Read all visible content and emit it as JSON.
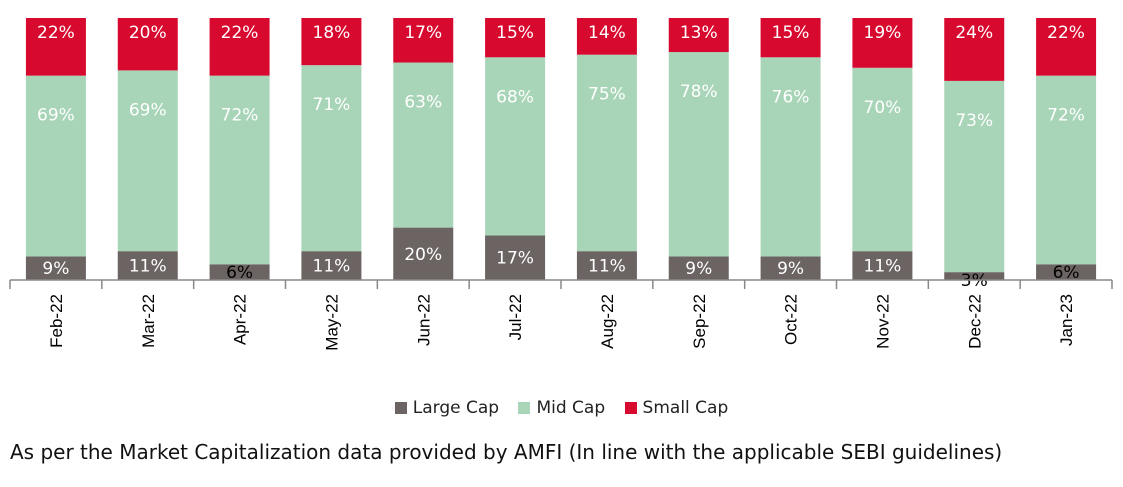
{
  "chart_data": {
    "type": "bar",
    "stacked": true,
    "categories": [
      "Feb-22",
      "Mar-22",
      "Apr-22",
      "May-22",
      "Jun-22",
      "Jul-22",
      "Aug-22",
      "Sep-22",
      "Oct-22",
      "Nov-22",
      "Dec-22",
      "Jan-23"
    ],
    "series": [
      {
        "name": "Large Cap",
        "color": "#6b6462",
        "values": [
          9,
          11,
          6,
          11,
          20,
          17,
          11,
          9,
          9,
          11,
          3,
          6
        ]
      },
      {
        "name": "Mid Cap",
        "color": "#a8d5b7",
        "values": [
          69,
          69,
          72,
          71,
          63,
          68,
          75,
          78,
          76,
          70,
          73,
          72
        ]
      },
      {
        "name": "Small Cap",
        "color": "#d8092f",
        "values": [
          22,
          20,
          22,
          18,
          17,
          15,
          14,
          13,
          15,
          19,
          24,
          22
        ]
      }
    ],
    "data_labels": [
      [
        "9%",
        "11%",
        "6%",
        "11%",
        "20%",
        "17%",
        "11%",
        "9%",
        "9%",
        "11%",
        "3%",
        "6%"
      ],
      [
        "69%",
        "69%",
        "72%",
        "71%",
        "63%",
        "68%",
        "75%",
        "78%",
        "76%",
        "70%",
        "73%",
        "72%"
      ],
      [
        "22%",
        "20%",
        "22%",
        "18%",
        "17%",
        "15%",
        "14%",
        "13%",
        "15%",
        "19%",
        "24%",
        "22%"
      ]
    ],
    "ylim": [
      0,
      100
    ],
    "legend_position": "bottom",
    "grid": false
  },
  "legend": [
    {
      "label": "Large Cap",
      "color": "#6b6462"
    },
    {
      "label": "Mid Cap",
      "color": "#a8d5b7"
    },
    {
      "label": "Small Cap",
      "color": "#d8092f"
    }
  ],
  "footnote": "As per the Market Capitalization data provided by AMFI (In line with the applicable SEBI guidelines)"
}
